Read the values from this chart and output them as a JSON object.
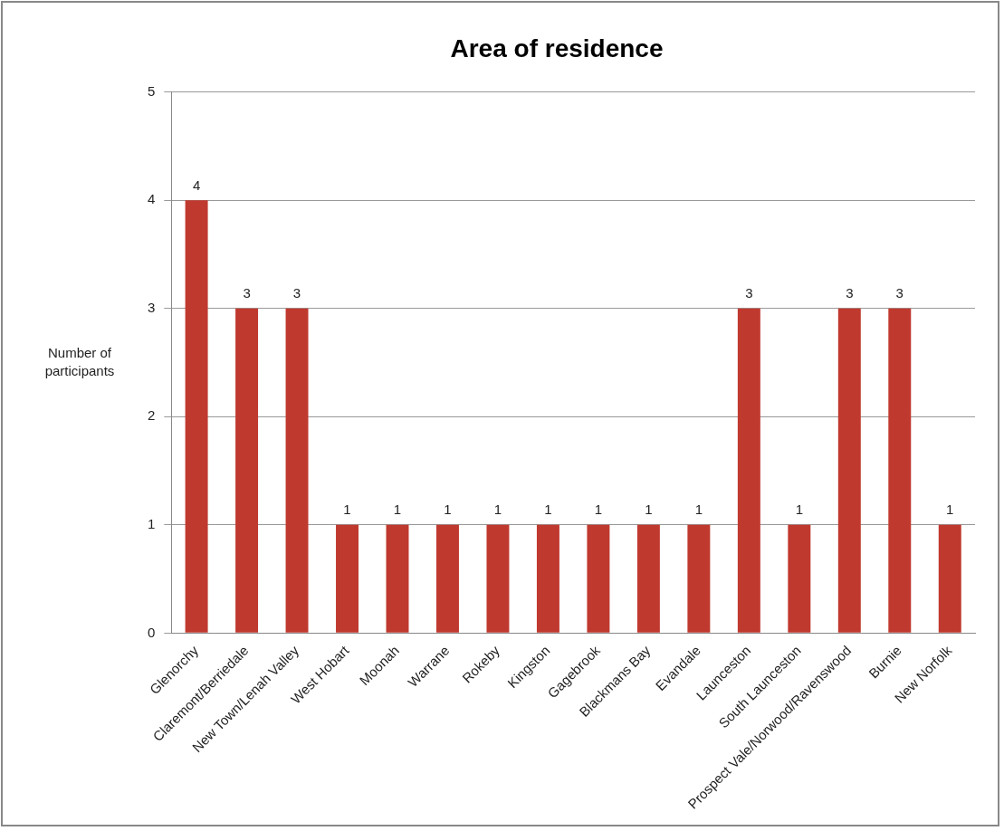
{
  "chart_data": {
    "type": "bar",
    "title": "Area of residence",
    "ylabel": "Number of participants",
    "categories": [
      "Glenorchy",
      "Claremont/Berriedale",
      "New Town/Lenah Valley",
      "West Hobart",
      "Moonah",
      "Warrane",
      "Rokeby",
      "Kingston",
      "Gagebrook",
      "Blackmans Bay",
      "Evandale",
      "Launceston",
      "South Launceston",
      "Prospect Vale/Norwood/Ravenswood",
      "Burnie",
      "New Norfolk"
    ],
    "values": [
      4,
      3,
      3,
      1,
      1,
      1,
      1,
      1,
      1,
      1,
      1,
      3,
      1,
      3,
      3,
      1
    ],
    "color": "#c0392f",
    "ylim": [
      0,
      5
    ],
    "yticks": [
      0,
      1,
      2,
      3,
      4,
      5
    ],
    "grid": "y",
    "legend": false,
    "data_labels": true
  }
}
